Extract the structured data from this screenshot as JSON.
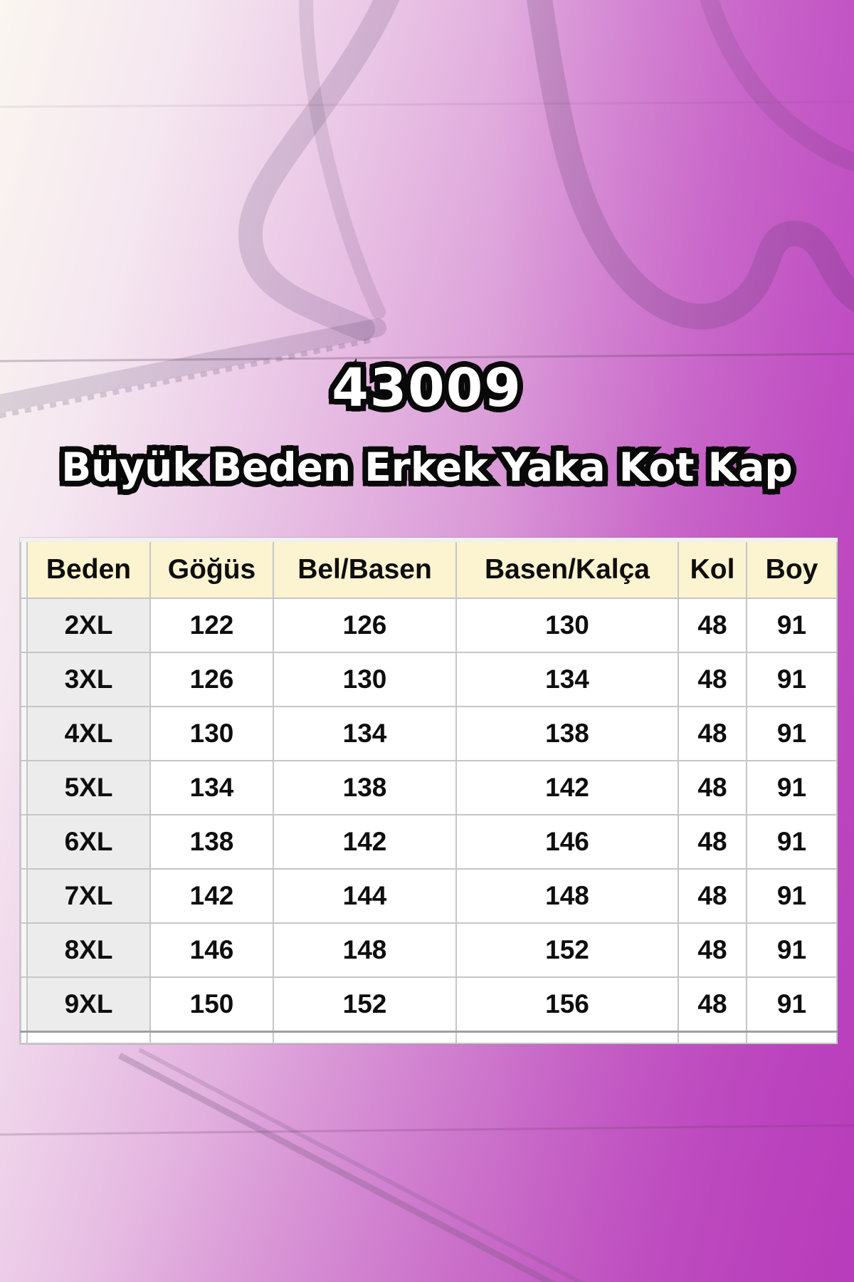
{
  "chart_data": {
    "type": "table",
    "title": "43009",
    "subtitle": "Büyük Beden Erkek Yaka Kot Kap",
    "columns": [
      "Beden",
      "Göğüs",
      "Bel/Basen",
      "Basen/Kalça",
      "Kol",
      "Boy"
    ],
    "rows": [
      [
        "2XL",
        "122",
        "126",
        "130",
        "48",
        "91"
      ],
      [
        "3XL",
        "126",
        "130",
        "134",
        "48",
        "91"
      ],
      [
        "4XL",
        "130",
        "134",
        "138",
        "48",
        "91"
      ],
      [
        "5XL",
        "134",
        "138",
        "142",
        "48",
        "91"
      ],
      [
        "6XL",
        "138",
        "142",
        "146",
        "48",
        "91"
      ],
      [
        "7XL",
        "142",
        "144",
        "148",
        "48",
        "91"
      ],
      [
        "8XL",
        "146",
        "148",
        "152",
        "48",
        "91"
      ],
      [
        "9XL",
        "150",
        "152",
        "156",
        "48",
        "91"
      ]
    ]
  },
  "colors": {
    "background_magenta": "#bc4cbe",
    "background_light": "#faf6f0",
    "header_bg": "#fcf3d0",
    "first_column_bg": "#ececec",
    "grid_line": "#c6c6c6",
    "title_fill": "#ffffff",
    "title_outline": "#090909"
  },
  "decor": {
    "watermark": "hanger-silhouette"
  }
}
